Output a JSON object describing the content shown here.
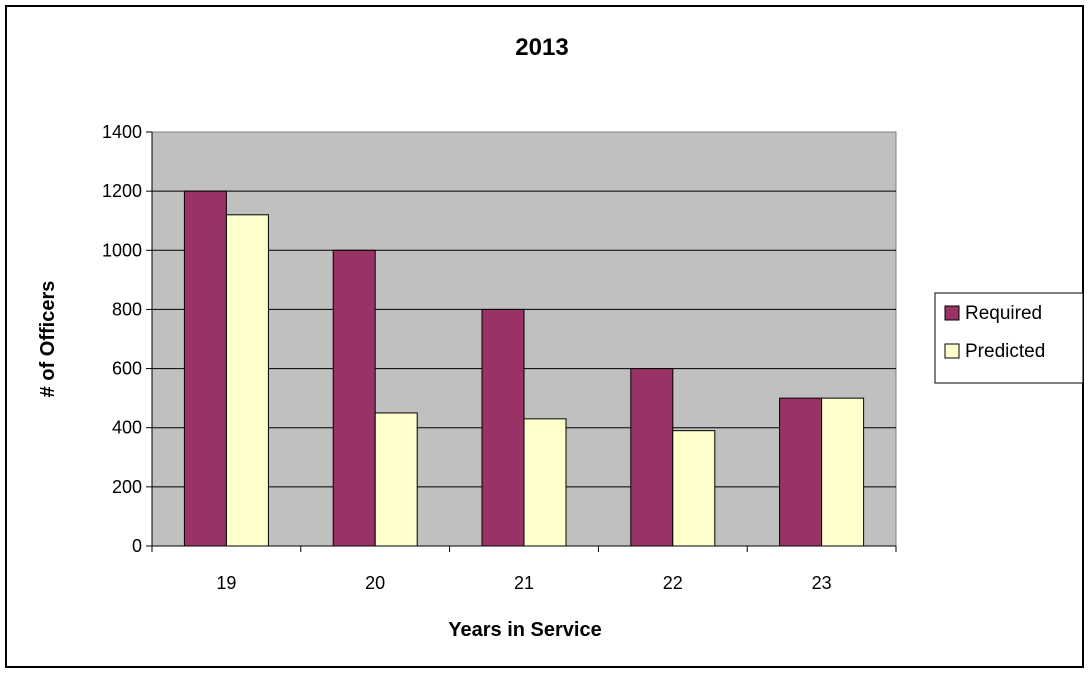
{
  "chart_data": {
    "type": "bar",
    "title": "2013",
    "xlabel": "Years in Service",
    "ylabel": "# of Officers",
    "categories": [
      "19",
      "20",
      "21",
      "22",
      "23"
    ],
    "series": [
      {
        "name": "Required",
        "values": [
          1200,
          1000,
          800,
          600,
          500
        ],
        "color": "#993366"
      },
      {
        "name": "Predicted",
        "values": [
          1120,
          450,
          430,
          390,
          500
        ],
        "color": "#FFFFCC"
      }
    ],
    "ylim": [
      0,
      1400
    ],
    "yticks": [
      0,
      200,
      400,
      600,
      800,
      1000,
      1200,
      1400
    ],
    "grid": true,
    "plot_background": "#C0C0C0",
    "legend_position": "right"
  }
}
